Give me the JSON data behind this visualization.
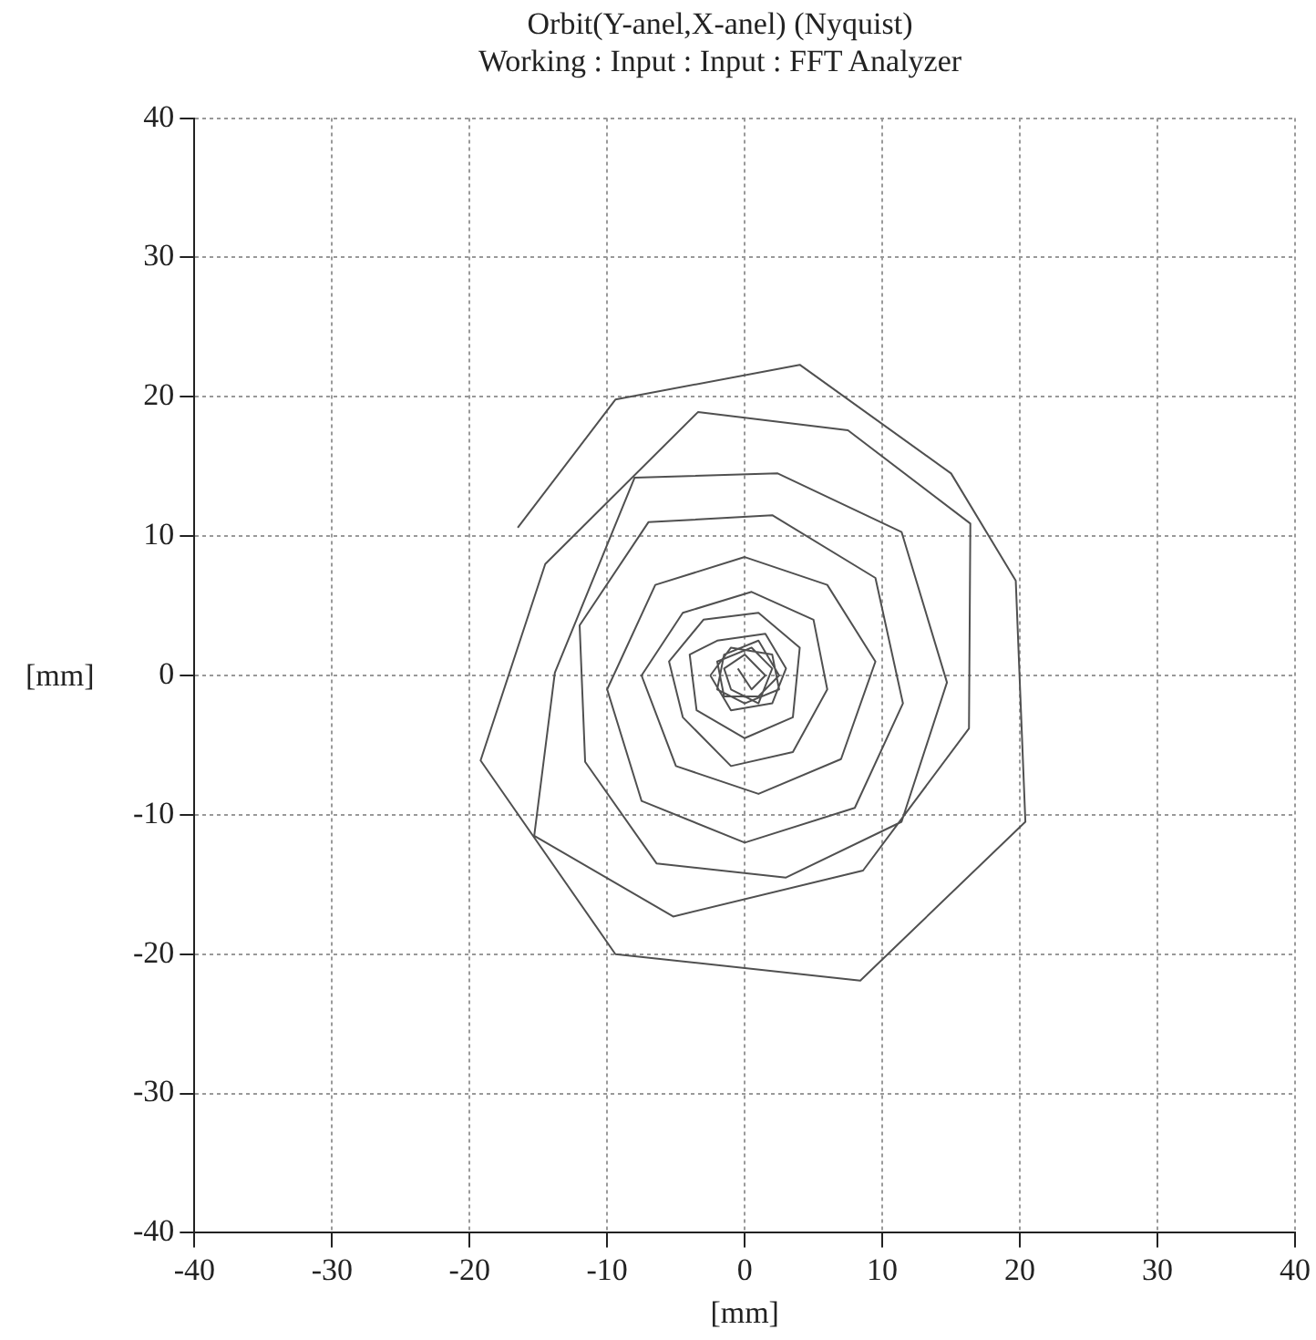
{
  "chart_data": {
    "type": "line",
    "title": "Orbit(Y-anel,X-anel) (Nyquist)",
    "subtitle": "Working : Input : Input : FFT Analyzer",
    "xlabel": "[mm]",
    "ylabel": "[mm]",
    "xlim": [
      -40,
      40
    ],
    "ylim": [
      -40,
      40
    ],
    "xticks": [
      -40,
      -30,
      -20,
      -10,
      0,
      10,
      20,
      30,
      40
    ],
    "yticks": [
      -40,
      -30,
      -20,
      -10,
      0,
      10,
      20,
      30,
      40
    ],
    "grid": true,
    "legend": false,
    "marker": "none",
    "line_style": "solid",
    "series": [
      {
        "color": "#505050",
        "x": [
          -16.5,
          -9.4,
          4,
          15,
          19.7,
          20.4,
          8.4,
          -9.4,
          -19.2,
          -14.5,
          -3.4,
          7.5,
          16.4,
          16.3,
          8.6,
          -5.2,
          -15.3,
          -13.8,
          -8,
          2.4,
          11.4,
          14.7,
          11.4,
          3,
          -6.4,
          -11.6,
          -12,
          -7,
          2,
          9.5,
          11.5,
          8,
          0,
          -7.5,
          -10,
          -6.5,
          0,
          6,
          9.5,
          7,
          1,
          -5,
          -7.5,
          -4.5,
          0.5,
          5,
          6,
          3.5,
          -1,
          -4.5,
          -5.5,
          -3,
          1,
          4,
          3.5,
          0,
          -3.5,
          -4,
          -2,
          1.5,
          3,
          2,
          -1,
          -2.5,
          -1,
          2,
          2.5,
          0,
          -2,
          -1.5,
          1,
          2.5,
          1,
          -1.5,
          -2,
          0.5,
          2,
          1,
          -1,
          -1.5,
          0,
          1.5,
          0.5,
          -0.5
        ],
        "values": [
          10.6,
          19.8,
          22.3,
          14.5,
          6.8,
          -10.5,
          -21.9,
          -20,
          -6.1,
          8,
          18.9,
          17.6,
          10.9,
          -3.8,
          -14,
          -17.3,
          -11.5,
          0.2,
          14.2,
          14.5,
          10.3,
          -0.5,
          -10.5,
          -14.5,
          -13.5,
          -6.2,
          3.6,
          11,
          11.5,
          7,
          -2,
          -9.5,
          -12,
          -9,
          -1,
          6.5,
          8.5,
          6.5,
          1,
          -6,
          -8.5,
          -6.5,
          0,
          4.5,
          6,
          4,
          -1,
          -5.5,
          -6.5,
          -3,
          1,
          4,
          4.5,
          2,
          -3,
          -4.5,
          -2.5,
          1.5,
          2.5,
          3,
          0.5,
          -2,
          -2.5,
          0,
          2,
          1.5,
          -1,
          -2,
          -1,
          1.5,
          2.5,
          0,
          -1.5,
          -1.5,
          1,
          2,
          0.5,
          -2,
          -1,
          0.5,
          1.5,
          0,
          -1,
          0.5
        ]
      }
    ]
  }
}
